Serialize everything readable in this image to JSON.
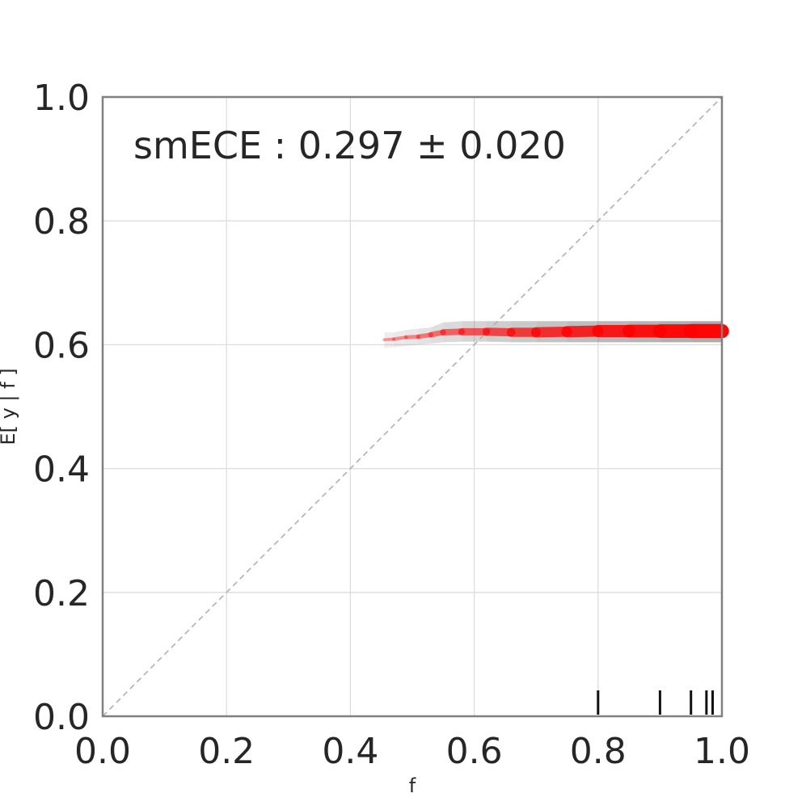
{
  "chart_data": {
    "type": "line",
    "xlabel": "f",
    "ylabel": "E[ y | f ]",
    "xlim": [
      0.0,
      1.0
    ],
    "ylim": [
      0.0,
      1.0
    ],
    "x_ticks": [
      "0.0",
      "0.2",
      "0.4",
      "0.6",
      "0.8",
      "1.0"
    ],
    "y_ticks": [
      "0.0",
      "0.2",
      "0.4",
      "0.6",
      "0.8",
      "1.0"
    ],
    "grid": true,
    "annotation": "smECE : 0.297 ± 0.020",
    "diagonal_reference": true,
    "series": [
      {
        "x": [
          0.455,
          0.47,
          0.49,
          0.51,
          0.53,
          0.55,
          0.58,
          0.62,
          0.66,
          0.7,
          0.75,
          0.8,
          0.85,
          0.9,
          0.95,
          1.0
        ],
        "y": [
          0.608,
          0.609,
          0.612,
          0.613,
          0.616,
          0.62,
          0.621,
          0.621,
          0.62,
          0.62,
          0.621,
          0.622,
          0.622,
          0.622,
          0.622,
          0.622
        ],
        "lower": [
          0.595,
          0.596,
          0.598,
          0.6,
          0.602,
          0.604,
          0.605,
          0.605,
          0.604,
          0.604,
          0.604,
          0.604,
          0.604,
          0.604,
          0.604,
          0.604
        ],
        "upper": [
          0.62,
          0.62,
          0.624,
          0.626,
          0.628,
          0.636,
          0.638,
          0.638,
          0.638,
          0.638,
          0.638,
          0.638,
          0.638,
          0.638,
          0.638,
          0.638
        ],
        "density": [
          0.05,
          0.08,
          0.12,
          0.18,
          0.25,
          0.32,
          0.4,
          0.48,
          0.56,
          0.64,
          0.72,
          0.8,
          0.86,
          0.92,
          0.97,
          1.0
        ]
      }
    ],
    "rug": [
      0.8,
      0.9,
      0.95,
      0.975,
      0.985
    ],
    "colors": {
      "line": "#ff0000",
      "band": "#808080",
      "diagonal": "#b0b0b0",
      "grid": "#dddddd",
      "axes": "#808080"
    }
  }
}
